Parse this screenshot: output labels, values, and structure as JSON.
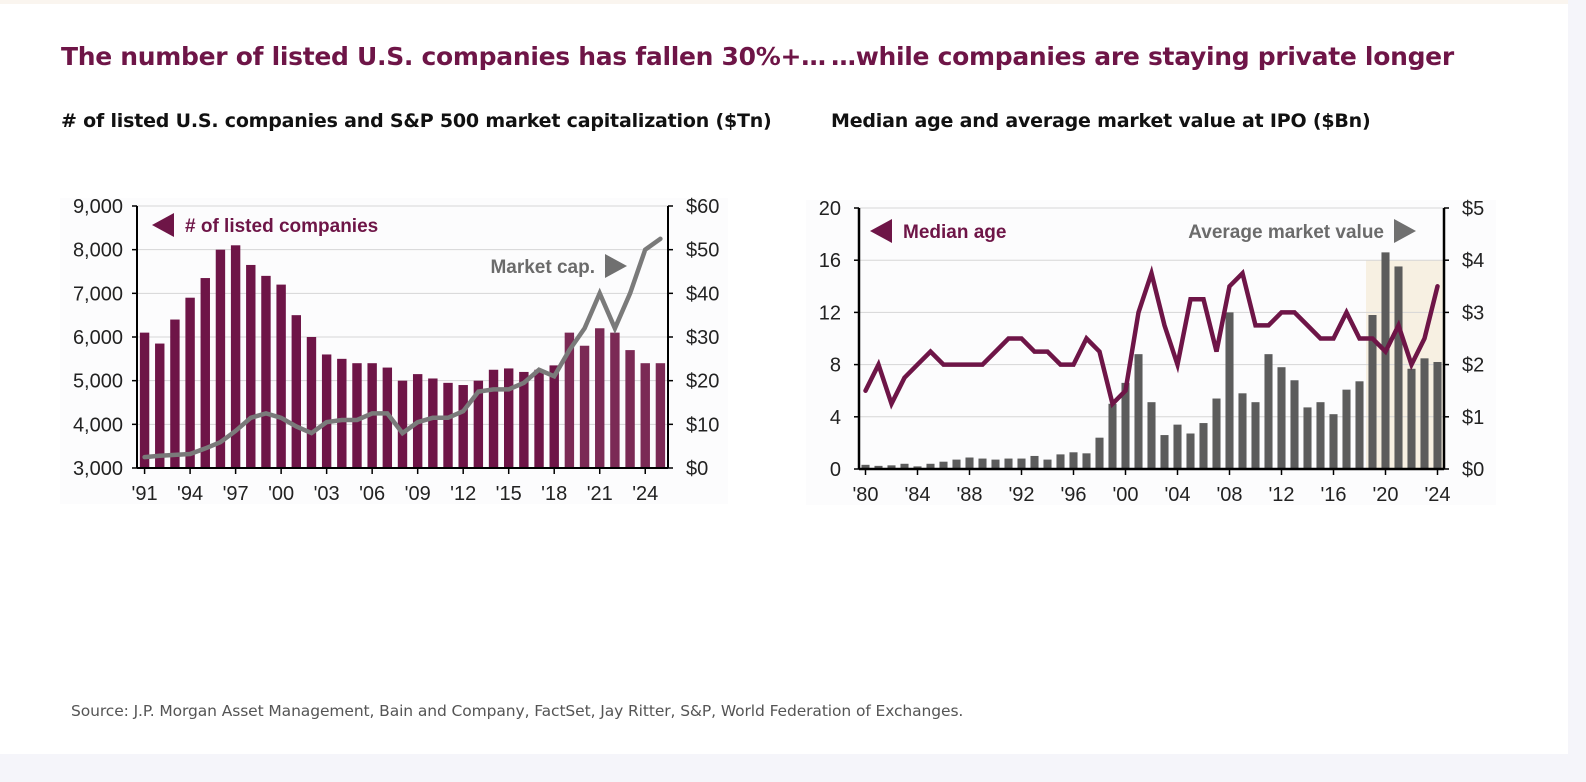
{
  "left_panel": {
    "title": "The number of listed U.S. companies has fallen 30%+…",
    "subtitle": "# of listed U.S. companies and S&P 500 market capitalization ($Tn)"
  },
  "right_panel": {
    "title": "…while companies are staying private longer",
    "subtitle": "Median age and average market value at IPO ($Bn)"
  },
  "source": "Source: J.P. Morgan Asset Management, Bain and Company, FactSet, Jay Ritter, S&P, World Federation of Exchanges.",
  "colors": {
    "bar_maroon": "#6e1547",
    "line_gray": "#7a7a7a",
    "bar_gray": "#5c5c5c",
    "highlight": "#f7f0e2",
    "title": "#6e1547"
  },
  "chart_data": [
    {
      "type": "bar",
      "title": "# of listed U.S. companies and S&P 500 market capitalization ($Tn)",
      "x": [
        1991,
        1992,
        1993,
        1994,
        1995,
        1996,
        1997,
        1998,
        1999,
        2000,
        2001,
        2002,
        2003,
        2004,
        2005,
        2006,
        2007,
        2008,
        2009,
        2010,
        2011,
        2012,
        2013,
        2014,
        2015,
        2016,
        2017,
        2018,
        2019,
        2020,
        2021,
        2022,
        2023,
        2024,
        2025
      ],
      "x_tick_years": [
        1991,
        1994,
        1997,
        2000,
        2003,
        2006,
        2009,
        2012,
        2015,
        2018,
        2021,
        2024
      ],
      "x_tick_labels": [
        "'91",
        "'94",
        "'97",
        "'00",
        "'03",
        "'06",
        "'09",
        "'12",
        "'15",
        "'18",
        "'21",
        "'24"
      ],
      "series": [
        {
          "name": "# of listed companies",
          "axis": "left",
          "kind": "bar",
          "values": [
            6100,
            5850,
            6400,
            6900,
            7350,
            8000,
            8100,
            7650,
            7400,
            7200,
            6500,
            6000,
            5600,
            5500,
            5400,
            5400,
            5300,
            5000,
            5150,
            5050,
            4950,
            4900,
            5000,
            5250,
            5280,
            5200,
            5250,
            5350,
            6100,
            5800,
            6200,
            6100,
            5700,
            5400,
            5400
          ]
        },
        {
          "name": "Market cap.",
          "axis": "right",
          "kind": "line",
          "values": [
            2.5,
            2.8,
            3.0,
            3.2,
            4.5,
            5.9,
            8.5,
            11.5,
            12.5,
            11.5,
            9.5,
            8.0,
            10.5,
            11.0,
            11.0,
            12.5,
            12.5,
            8.0,
            10.5,
            11.5,
            11.5,
            13.0,
            17.5,
            18.0,
            18.0,
            19.5,
            22.5,
            21.0,
            27.0,
            32.0,
            40.0,
            32.0,
            40.0,
            50.0,
            52.5
          ]
        }
      ],
      "left_axis": {
        "range": [
          3000,
          9000
        ],
        "ticks": [
          "9,000",
          "8,000",
          "7,000",
          "6,000",
          "5,000",
          "4,000",
          "3,000"
        ],
        "tick_values": [
          9000,
          8000,
          7000,
          6000,
          5000,
          4000,
          3000
        ]
      },
      "right_axis": {
        "range": [
          0,
          60
        ],
        "ticks": [
          "$60",
          "$50",
          "$40",
          "$30",
          "$20",
          "$10",
          "$0"
        ],
        "tick_values": [
          60,
          50,
          40,
          30,
          20,
          10,
          0
        ]
      },
      "highlight_from_year": 2019,
      "highlight_top_value": 33,
      "legend_left": "# of listed companies",
      "legend_right": "Market cap."
    },
    {
      "type": "bar",
      "title": "Median age and average market value at IPO ($Bn)",
      "x": [
        1980,
        1981,
        1982,
        1983,
        1984,
        1985,
        1986,
        1987,
        1988,
        1989,
        1990,
        1991,
        1992,
        1993,
        1994,
        1995,
        1996,
        1997,
        1998,
        1999,
        2000,
        2001,
        2002,
        2003,
        2004,
        2005,
        2006,
        2007,
        2008,
        2009,
        2010,
        2011,
        2012,
        2013,
        2014,
        2015,
        2016,
        2017,
        2018,
        2019,
        2020,
        2021,
        2022,
        2023,
        2024
      ],
      "x_tick_years": [
        1980,
        1984,
        1988,
        1992,
        1996,
        2000,
        2004,
        2008,
        2012,
        2016,
        2020,
        2024
      ],
      "x_tick_labels": [
        "'80",
        "'84",
        "'88",
        "'92",
        "'96",
        "'00",
        "'04",
        "'08",
        "'12",
        "'16",
        "'20",
        "'24"
      ],
      "series": [
        {
          "name": "Average market value",
          "axis": "right",
          "kind": "bar",
          "values": [
            0.08,
            0.06,
            0.07,
            0.1,
            0.05,
            0.1,
            0.14,
            0.18,
            0.22,
            0.2,
            0.18,
            0.2,
            0.2,
            0.25,
            0.18,
            0.28,
            0.32,
            0.3,
            0.6,
            1.25,
            1.65,
            2.2,
            1.28,
            0.65,
            0.85,
            0.68,
            0.88,
            1.35,
            3.0,
            1.45,
            1.28,
            2.2,
            1.95,
            1.7,
            1.18,
            1.28,
            1.05,
            1.52,
            1.68,
            2.95,
            4.15,
            3.88,
            1.92,
            2.12,
            2.05
          ]
        },
        {
          "name": "Median age",
          "axis": "left",
          "kind": "line",
          "values": [
            6,
            8,
            5,
            7,
            8,
            9,
            8,
            8,
            8,
            8,
            9,
            10,
            10,
            9,
            9,
            8,
            8,
            10,
            9,
            5,
            6,
            12,
            15,
            11,
            8,
            13,
            13,
            9,
            14,
            15,
            11,
            11,
            12,
            12,
            11,
            10,
            10,
            12,
            10,
            10,
            9,
            11,
            8,
            10,
            14
          ]
        }
      ],
      "left_axis": {
        "range": [
          0,
          20
        ],
        "ticks": [
          "20",
          "16",
          "12",
          "8",
          "4",
          "0"
        ],
        "tick_values": [
          20,
          16,
          12,
          8,
          4,
          0
        ]
      },
      "right_axis": {
        "range": [
          0,
          5
        ],
        "ticks": [
          "$5",
          "$4",
          "$3",
          "$2",
          "$1",
          "$0"
        ],
        "tick_values": [
          5,
          4,
          3,
          2,
          1,
          0
        ]
      },
      "highlight_from_year": 2019,
      "highlight_top_value": 16,
      "legend_left": "Median age",
      "legend_right": "Average market value"
    }
  ]
}
